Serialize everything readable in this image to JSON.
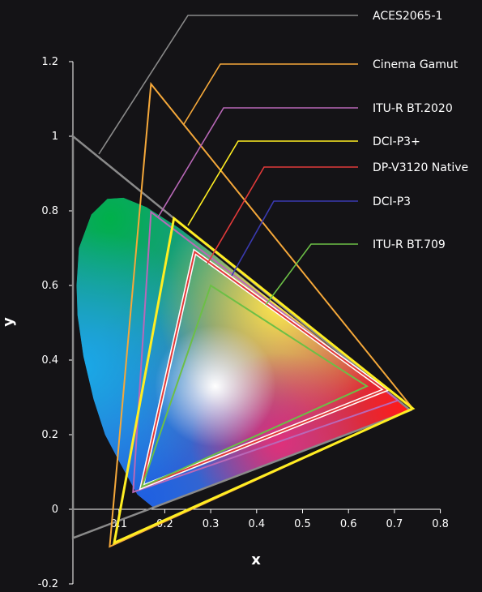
{
  "chart_data": {
    "type": "line",
    "xlabel": "x",
    "ylabel": "y",
    "xlim": [
      0,
      0.8
    ],
    "ylim": [
      -0.2,
      1.2
    ],
    "x_ticks": [
      "0.1",
      "0.2",
      "0.3",
      "0.4",
      "0.5",
      "0.6",
      "0.7",
      "0.8"
    ],
    "x_tick_values": [
      0.1,
      0.2,
      0.3,
      0.4,
      0.5,
      0.6,
      0.7,
      0.8
    ],
    "y_ticks": [
      "-0.2",
      "0",
      "0.2",
      "0.4",
      "0.6",
      "0.8",
      "1",
      "1.2"
    ],
    "y_tick_values": [
      -0.2,
      0,
      0.2,
      0.4,
      0.6,
      0.8,
      1.0,
      1.2
    ],
    "grid": false,
    "legend_position": "right",
    "spectral_locus": [
      [
        0.175,
        0.005
      ],
      [
        0.14,
        0.04
      ],
      [
        0.1,
        0.13
      ],
      [
        0.07,
        0.2
      ],
      [
        0.045,
        0.295
      ],
      [
        0.023,
        0.41
      ],
      [
        0.01,
        0.52
      ],
      [
        0.008,
        0.6
      ],
      [
        0.013,
        0.7
      ],
      [
        0.04,
        0.79
      ],
      [
        0.075,
        0.832
      ],
      [
        0.11,
        0.835
      ],
      [
        0.16,
        0.81
      ],
      [
        0.23,
        0.755
      ],
      [
        0.3,
        0.69
      ],
      [
        0.4,
        0.59
      ],
      [
        0.5,
        0.495
      ],
      [
        0.6,
        0.395
      ],
      [
        0.7,
        0.3
      ],
      [
        0.7347,
        0.2653
      ]
    ],
    "series": [
      {
        "name": "ACES2065-1",
        "color": "#8a8a8a",
        "points": [
          [
            0.7347,
            0.2653
          ],
          [
            0.0,
            1.0
          ],
          [
            0.0001,
            -0.077
          ]
        ]
      },
      {
        "name": "Cinema Gamut",
        "color": "#f5a83a",
        "points": [
          [
            0.74,
            0.27
          ],
          [
            0.17,
            1.14
          ],
          [
            0.08,
            -0.1
          ]
        ]
      },
      {
        "name": "ITU-R BT.2020",
        "color": "#b968b8",
        "points": [
          [
            0.708,
            0.292
          ],
          [
            0.17,
            0.797
          ],
          [
            0.131,
            0.046
          ]
        ]
      },
      {
        "name": "DCI-P3+",
        "color": "#ffee22",
        "points": [
          [
            0.74,
            0.27
          ],
          [
            0.22,
            0.78
          ],
          [
            0.09,
            -0.09
          ]
        ]
      },
      {
        "name": "DP-V3120 Native",
        "color": "#e23a3a",
        "points": [
          [
            0.68,
            0.32
          ],
          [
            0.265,
            0.69
          ],
          [
            0.15,
            0.06
          ]
        ]
      },
      {
        "name": "DCI-P3",
        "color": "#3a3ab0",
        "points": [
          [
            0.68,
            0.32
          ],
          [
            0.265,
            0.69
          ],
          [
            0.15,
            0.06
          ]
        ]
      },
      {
        "name": "ITU-R BT.709",
        "color": "#6cbf46",
        "points": [
          [
            0.64,
            0.33
          ],
          [
            0.3,
            0.6
          ],
          [
            0.15,
            0.06
          ]
        ]
      }
    ]
  }
}
